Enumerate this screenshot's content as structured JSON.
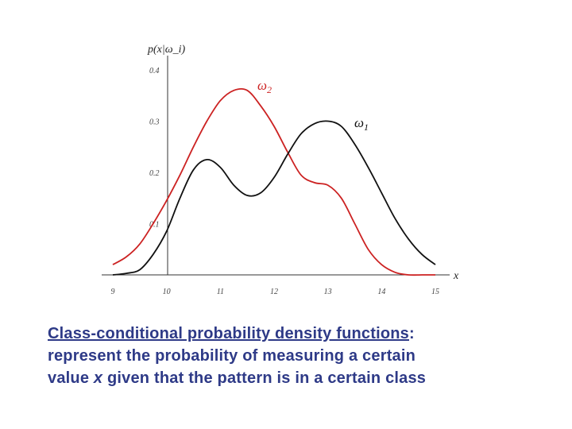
{
  "chart_data": {
    "type": "line",
    "ylabel": "p(x|ω_i)",
    "xlabel": "x",
    "xlim": [
      9,
      15
    ],
    "ylim": [
      0,
      0.4
    ],
    "x_ticks": [
      9,
      10,
      11,
      12,
      13,
      14,
      15
    ],
    "y_ticks": [
      {
        "value": 0.1,
        "label": "0.1"
      },
      {
        "value": 0.2,
        "label": "0.2"
      },
      {
        "value": 0.3,
        "label": "0.3"
      },
      {
        "value": 0.4,
        "label": "0.4"
      }
    ],
    "grid": false,
    "series": [
      {
        "name": "ω_2",
        "color": "#cc2222",
        "x": [
          9.0,
          9.25,
          9.5,
          9.75,
          10.0,
          10.25,
          10.5,
          10.75,
          11.0,
          11.25,
          11.5,
          11.75,
          12.0,
          12.25,
          12.5,
          12.75,
          13.0,
          13.25,
          13.5,
          13.75,
          14.0,
          14.25,
          14.5,
          14.75,
          15.0
        ],
        "y": [
          0.02,
          0.035,
          0.06,
          0.1,
          0.145,
          0.195,
          0.25,
          0.3,
          0.34,
          0.36,
          0.36,
          0.33,
          0.29,
          0.24,
          0.195,
          0.18,
          0.175,
          0.15,
          0.1,
          0.05,
          0.02,
          0.005,
          0.0,
          0.0,
          0.0
        ]
      },
      {
        "name": "ω_1",
        "color": "#111111",
        "x": [
          9.0,
          9.25,
          9.5,
          9.75,
          10.0,
          10.25,
          10.5,
          10.75,
          11.0,
          11.25,
          11.5,
          11.75,
          12.0,
          12.25,
          12.5,
          12.75,
          13.0,
          13.25,
          13.5,
          13.75,
          14.0,
          14.25,
          14.5,
          14.75,
          15.0
        ],
        "y": [
          0.0,
          0.003,
          0.01,
          0.04,
          0.085,
          0.15,
          0.205,
          0.225,
          0.21,
          0.175,
          0.155,
          0.16,
          0.19,
          0.235,
          0.275,
          0.295,
          0.3,
          0.29,
          0.255,
          0.21,
          0.16,
          0.11,
          0.07,
          0.04,
          0.02
        ]
      }
    ]
  },
  "caption": {
    "term": "Class-conditional probability density functions",
    "colon": ":",
    "line2": "represent the probability of measuring a certain",
    "line3_pre": "value ",
    "line3_var": "x",
    "line3_post": " given that the pattern is in a certain class"
  }
}
